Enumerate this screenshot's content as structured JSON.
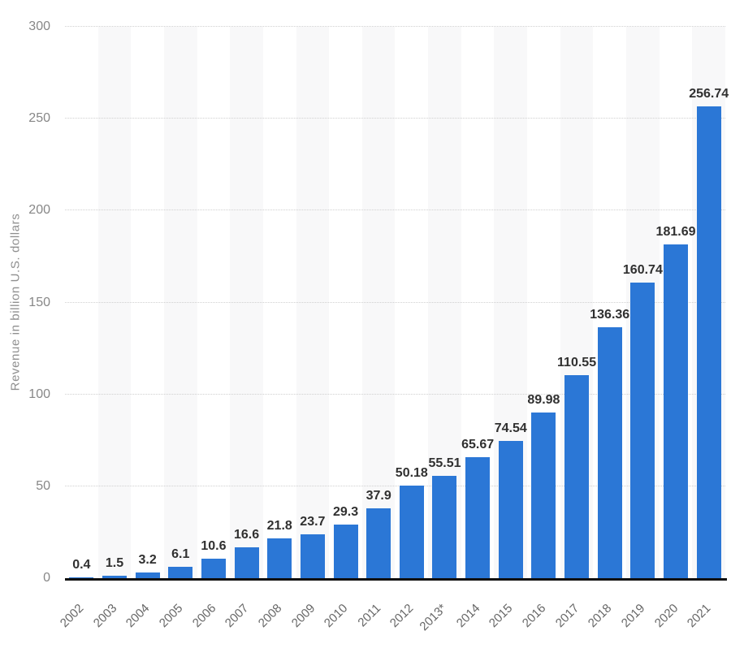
{
  "chart_data": {
    "type": "bar",
    "title": "",
    "xlabel": "",
    "ylabel": "Revenue in billion U.S. dollars",
    "ylim": [
      0,
      300
    ],
    "yticks": [
      0,
      50,
      100,
      150,
      200,
      250,
      300
    ],
    "grid": "horizontal dotted lines, solid black baseline at 0",
    "legend_position": "none",
    "background_stripes": "alternating vertical bands behind every second category",
    "categories": [
      "2002",
      "2003",
      "2004",
      "2005",
      "2006",
      "2007",
      "2008",
      "2009",
      "2010",
      "2011",
      "2012",
      "2013*",
      "2014",
      "2015",
      "2016",
      "2017",
      "2018",
      "2019",
      "2020",
      "2021"
    ],
    "values": [
      0.4,
      1.5,
      3.2,
      6.1,
      10.6,
      16.6,
      21.8,
      23.7,
      29.3,
      37.9,
      50.18,
      55.51,
      65.67,
      74.54,
      89.98,
      110.55,
      136.36,
      160.74,
      181.69,
      256.74
    ],
    "value_labels": [
      "0.4",
      "1.5",
      "3.2",
      "6.1",
      "10.6",
      "16.6",
      "21.8",
      "23.7",
      "29.3",
      "37.9",
      "50.18",
      "55.51",
      "65.67",
      "74.54",
      "89.98",
      "110.55",
      "136.36",
      "160.74",
      "181.69",
      "256.74"
    ]
  },
  "colors": {
    "bar": "#2b77d6",
    "stripe": "#f8f8f9",
    "gridline": "#d0d0d0",
    "axis_line": "#101010",
    "value_label": "#303030",
    "tick_label": "#878787",
    "year_label": "#666666",
    "y_title": "#8f8f8f",
    "background": "#ffffff"
  }
}
